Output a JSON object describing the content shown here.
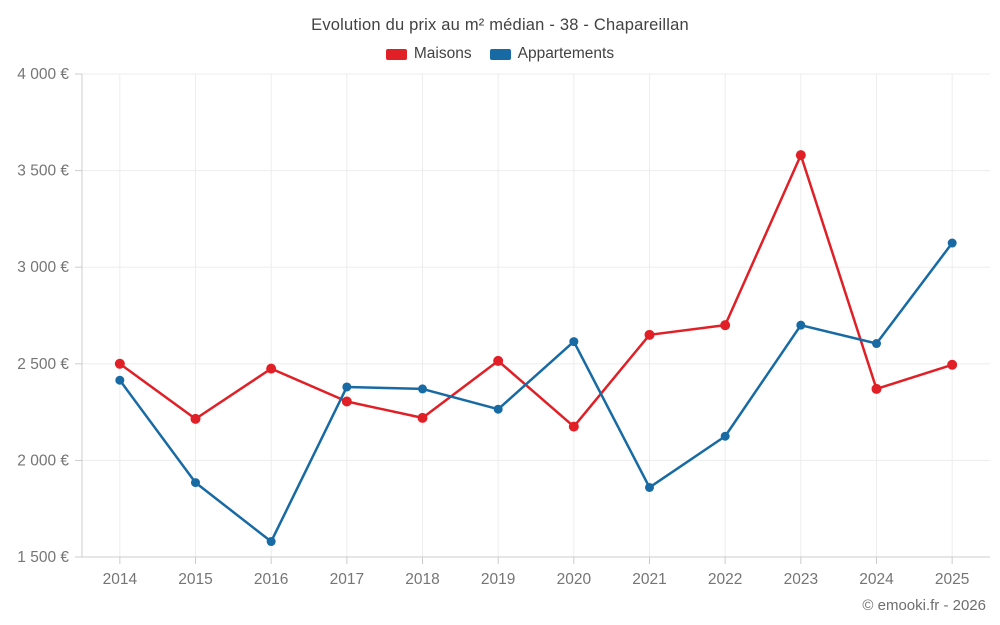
{
  "footer": "© emooki.fr - 2026",
  "colors": {
    "maisons_red": "#e11f26",
    "appartements_blue": "#176aa3",
    "grid": "#ededed",
    "axis": "#cccccc",
    "tick_label": "#757575",
    "title_text": "#424242"
  },
  "chart_data": {
    "type": "line",
    "title": "Evolution du prix au m² médian - 38 - Chapareillan",
    "xlabel": "",
    "ylabel": "",
    "categories": [
      "2014",
      "2015",
      "2016",
      "2017",
      "2018",
      "2019",
      "2020",
      "2021",
      "2022",
      "2023",
      "2024",
      "2025"
    ],
    "series": [
      {
        "name": "Maisons",
        "color": "#e11f26",
        "values": [
          2500,
          2215,
          2475,
          2305,
          2220,
          2515,
          2175,
          2650,
          2700,
          3580,
          2370,
          2495
        ]
      },
      {
        "name": "Appartements",
        "color": "#176aa3",
        "values": [
          2415,
          1885,
          1580,
          2380,
          2370,
          2265,
          2615,
          1860,
          2125,
          2700,
          2605,
          3125
        ]
      }
    ],
    "ylim": [
      1500,
      4000
    ],
    "ytick_step": 500,
    "ytick_labels": [
      "1 500 €",
      "2 000 €",
      "2 500 €",
      "3 000 €",
      "3 500 €",
      "4 000 €"
    ],
    "grid": true,
    "legend_position": "top",
    "currency": "€"
  }
}
